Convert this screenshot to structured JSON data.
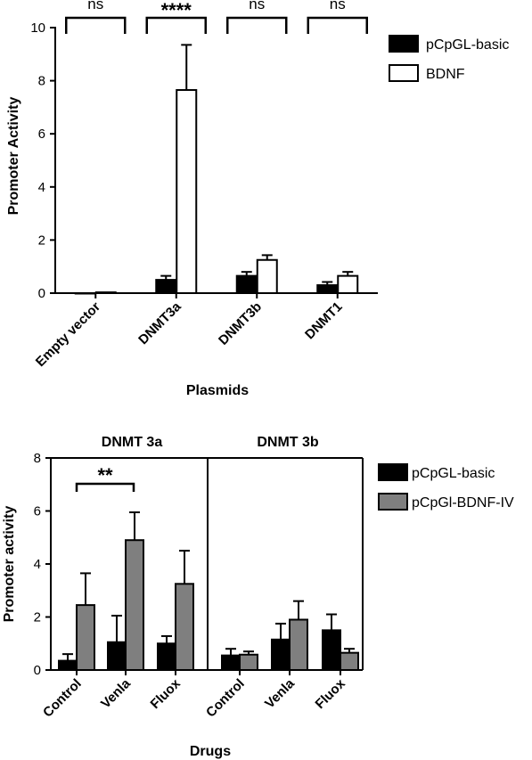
{
  "chart_data": [
    {
      "type": "bar",
      "xlabel": "Plasmids",
      "ylabel": "Promoter Activity",
      "ylim": [
        0,
        10
      ],
      "yticks": [
        0,
        2,
        4,
        6,
        8,
        10
      ],
      "categories": [
        "Empty vector",
        "DNMT3a",
        "DNMT3b",
        "DNMT1"
      ],
      "series": [
        {
          "name": "pCpGL-basic",
          "color": "#000000",
          "values": [
            0,
            0.5,
            0.65,
            0.3
          ],
          "errors": [
            0,
            0.15,
            0.15,
            0.12
          ]
        },
        {
          "name": "BDNF",
          "color": "#ffffff",
          "values": [
            0.03,
            7.65,
            1.25,
            0.65
          ],
          "errors": [
            0,
            1.7,
            0.18,
            0.15
          ]
        }
      ],
      "significance": [
        "ns",
        "****",
        "ns",
        "ns"
      ],
      "legend_position": "right",
      "grid": false
    },
    {
      "type": "bar",
      "xlabel": "Drugs",
      "ylabel": "Promoter activity",
      "ylim": [
        0,
        8
      ],
      "yticks": [
        0,
        2,
        4,
        6,
        8
      ],
      "panels": [
        {
          "title": "DNMT 3a",
          "categories": [
            "Control",
            "Venla",
            "Fluox"
          ]
        },
        {
          "title": "DNMT 3b",
          "categories": [
            "Control",
            "Venla",
            "Fluox"
          ]
        }
      ],
      "series": [
        {
          "name": "pCpGL-basic",
          "color": "#000000",
          "values": [
            0.35,
            1.05,
            1.0,
            0.55,
            1.15,
            1.5
          ],
          "errors": [
            0.25,
            1.0,
            0.28,
            0.25,
            0.6,
            0.6
          ]
        },
        {
          "name": "pCpGl-BDNF-IV",
          "color": "#7f7f7f",
          "values": [
            2.45,
            4.9,
            3.25,
            0.58,
            1.9,
            0.65
          ],
          "errors": [
            1.2,
            1.05,
            1.25,
            0.12,
            0.7,
            0.15
          ]
        }
      ],
      "significance_bracket": {
        "label": "**",
        "from": "Control",
        "to": "Venla",
        "panel": "DNMT 3a"
      },
      "legend_position": "right",
      "grid": false
    }
  ]
}
